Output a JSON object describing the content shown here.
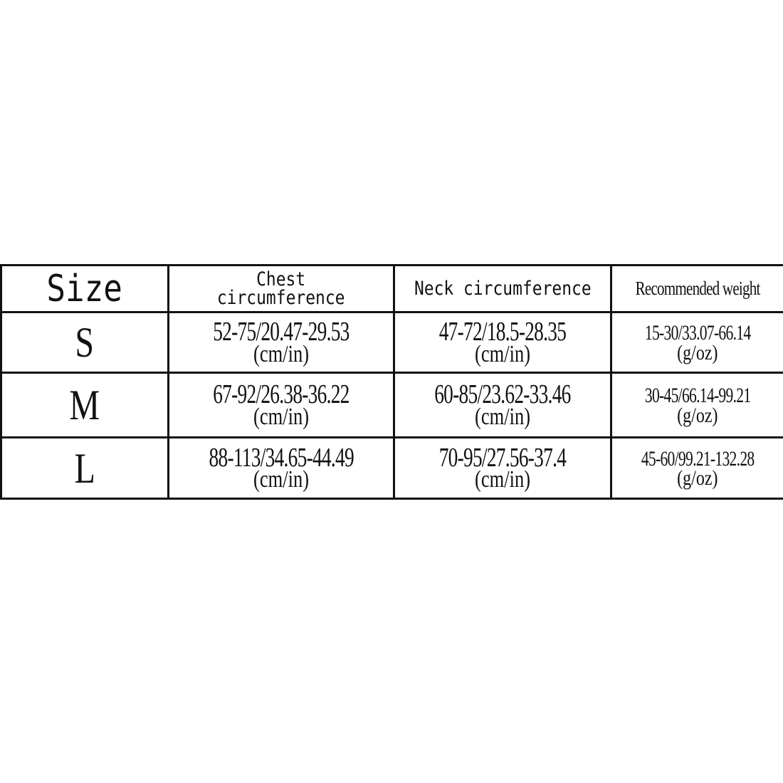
{
  "table": {
    "headers": [
      "Size",
      "Chest circumference",
      "Neck circumference",
      "Recommended weight"
    ],
    "header_lines": {
      "chest": [
        "Chest",
        "circumference"
      ]
    },
    "rows": [
      {
        "size": "S",
        "chest": "52-75/20.47-29.53",
        "neck": "47-72/18.5-28.35",
        "weight": "15-30/33.07-66.14"
      },
      {
        "size": "M",
        "chest": "67-92/26.38-36.22",
        "neck": "60-85/23.62-33.46",
        "weight": "30-45/66.14-99.21"
      },
      {
        "size": "L",
        "chest": "88-113/34.65-44.49",
        "neck": "70-95/27.56-37.4",
        "weight": "45-60/99.21-132.28"
      }
    ],
    "units": {
      "length": "(cm/in)",
      "weight": "(g/oz)"
    }
  },
  "colors": {
    "border": "#111111",
    "background": "#ffffff"
  }
}
